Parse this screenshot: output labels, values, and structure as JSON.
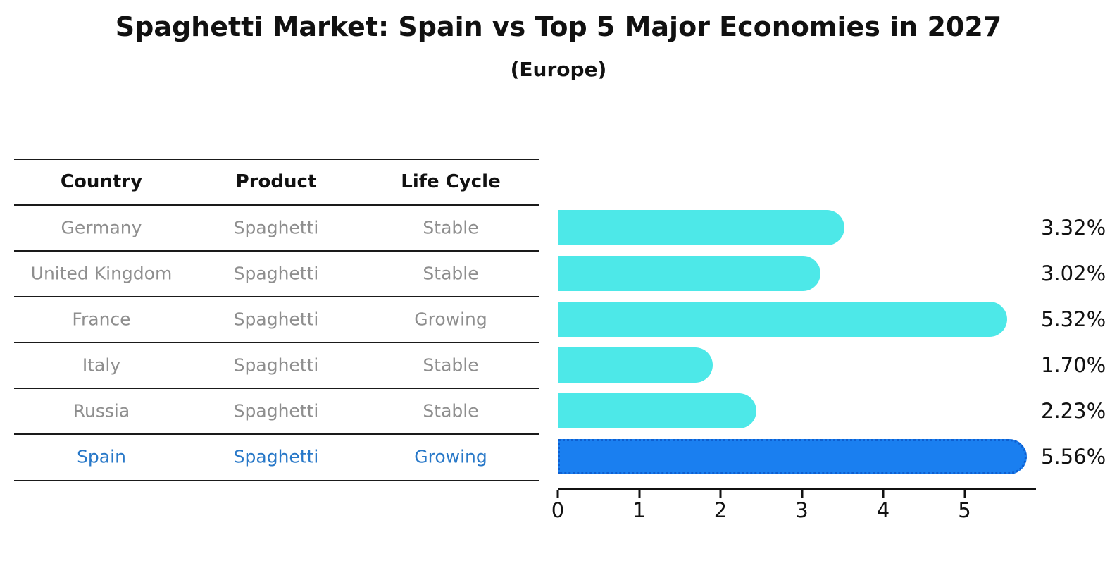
{
  "title": "Spaghetti Market: Spain vs Top 5 Major Economies in 2027",
  "subtitle": "(Europe)",
  "table": {
    "headers": [
      "Country",
      "Product",
      "Life Cycle"
    ],
    "rows": [
      {
        "country": "Germany",
        "product": "Spaghetti",
        "life_cycle": "Stable",
        "highlight": false
      },
      {
        "country": "United Kingdom",
        "product": "Spaghetti",
        "life_cycle": "Stable",
        "highlight": false
      },
      {
        "country": "France",
        "product": "Spaghetti",
        "life_cycle": "Growing",
        "highlight": false
      },
      {
        "country": "Italy",
        "product": "Spaghetti",
        "life_cycle": "Stable",
        "highlight": false
      },
      {
        "country": "Russia",
        "product": "Spaghetti",
        "life_cycle": "Stable",
        "highlight": false
      },
      {
        "country": "Spain",
        "product": "Spaghetti",
        "life_cycle": "Growing",
        "highlight": true
      }
    ]
  },
  "chart_data": {
    "type": "bar",
    "orientation": "horizontal",
    "title": "Spaghetti Market: Spain vs Top 5 Major Economies in 2027",
    "subtitle": "(Europe)",
    "categories": [
      "Germany",
      "United Kingdom",
      "France",
      "Italy",
      "Russia",
      "Spain"
    ],
    "values": [
      3.32,
      3.02,
      5.32,
      1.7,
      2.23,
      5.56
    ],
    "value_labels": [
      "3.32%",
      "3.02%",
      "5.32%",
      "1.70%",
      "2.23%",
      "5.56%"
    ],
    "value_suffix": "%",
    "x_ticks": [
      0,
      1,
      2,
      3,
      4,
      5
    ],
    "xlim": [
      0,
      5.87
    ],
    "grid": false,
    "legend": "none",
    "highlight_index": 5,
    "bar_color": "#4DE8E8",
    "highlight_bar_color": "#1A7FF0",
    "highlight_edge_color": "#0E5FD0",
    "highlight_text_color": "#2878C8",
    "row_text_color": "#8e8e8e",
    "axis_color": "#111111"
  }
}
